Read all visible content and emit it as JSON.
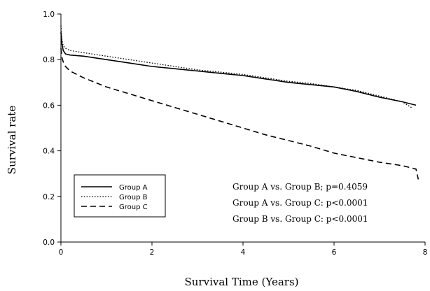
{
  "chart_data": {
    "type": "line",
    "xlabel": "Survival Time (Years)",
    "ylabel": "Survival rate",
    "xlim": [
      0,
      8
    ],
    "ylim": [
      0,
      1.0
    ],
    "xticks": [
      "0",
      "2",
      "4",
      "6",
      "8"
    ],
    "yticks": [
      "0.0",
      "0.2",
      "0.4",
      "0.6",
      "0.8",
      "1.0"
    ],
    "grid": false,
    "legend_position": "bottom-left",
    "series": [
      {
        "name": "Group A",
        "style": "solid",
        "x": [
          0,
          0.02,
          0.05,
          0.1,
          0.2,
          0.5,
          1.0,
          1.5,
          2.0,
          2.5,
          3.0,
          3.5,
          4.0,
          4.5,
          5.0,
          5.5,
          6.0,
          6.5,
          7.0,
          7.5,
          7.8
        ],
        "y": [
          0.92,
          0.87,
          0.84,
          0.825,
          0.82,
          0.815,
          0.8,
          0.785,
          0.77,
          0.76,
          0.75,
          0.74,
          0.73,
          0.715,
          0.7,
          0.69,
          0.68,
          0.66,
          0.635,
          0.615,
          0.6
        ]
      },
      {
        "name": "Group B",
        "style": "dotted",
        "x": [
          0,
          0.02,
          0.05,
          0.1,
          0.2,
          0.5,
          1.0,
          1.5,
          2.0,
          2.5,
          3.0,
          3.5,
          4.0,
          4.5,
          5.0,
          5.5,
          6.0,
          6.5,
          7.0,
          7.5,
          7.7
        ],
        "y": [
          0.95,
          0.89,
          0.86,
          0.85,
          0.84,
          0.83,
          0.815,
          0.8,
          0.785,
          0.77,
          0.755,
          0.745,
          0.735,
          0.72,
          0.705,
          0.695,
          0.68,
          0.665,
          0.64,
          0.615,
          0.59
        ]
      },
      {
        "name": "Group C",
        "style": "dashed",
        "x": [
          0,
          0.02,
          0.05,
          0.1,
          0.2,
          0.5,
          1.0,
          1.5,
          2.0,
          2.5,
          3.0,
          3.5,
          4.0,
          4.5,
          5.0,
          5.5,
          6.0,
          6.5,
          7.0,
          7.5,
          7.8,
          7.85
        ],
        "y": [
          0.85,
          0.81,
          0.79,
          0.77,
          0.75,
          0.72,
          0.68,
          0.65,
          0.62,
          0.59,
          0.56,
          0.53,
          0.5,
          0.47,
          0.445,
          0.42,
          0.39,
          0.37,
          0.35,
          0.335,
          0.32,
          0.275
        ]
      }
    ],
    "annotations": [
      "Group A vs. Group B; p=0.4059",
      "Group A vs. Group C: p<0.0001",
      "Group B vs. Group C: p<0.0001"
    ]
  }
}
